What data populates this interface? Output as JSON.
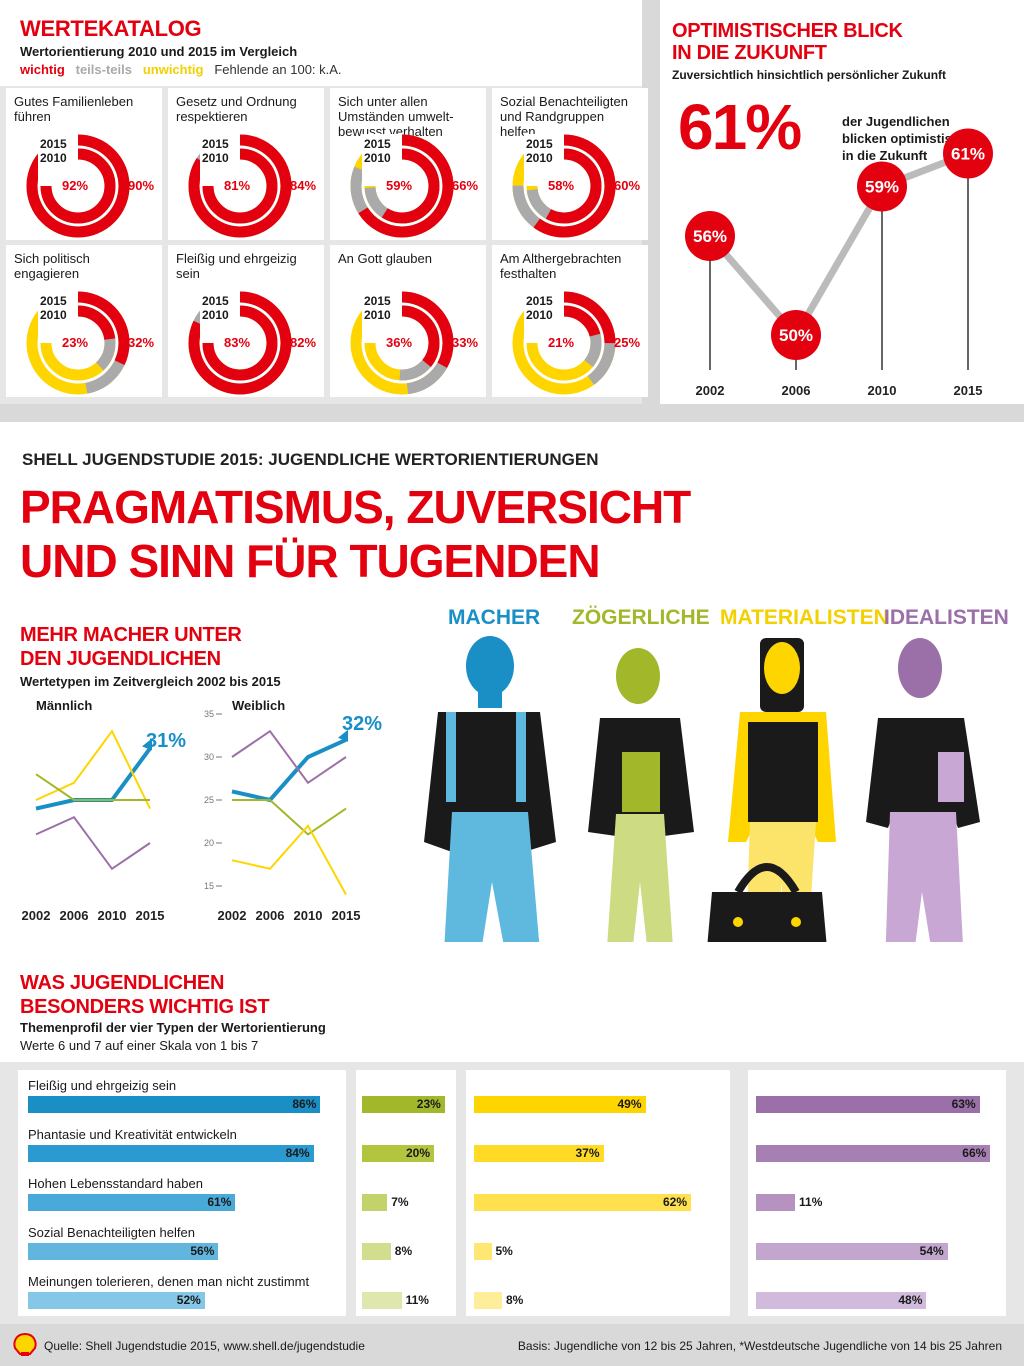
{
  "werte": {
    "title": "WERTEKATALOG",
    "subtitle": "Wertorientierung 2010 und 2015 im Vergleich",
    "legend": {
      "wichtig": "wichtig",
      "teils": "teils-teils",
      "unwichtig": "unwichtig",
      "fehlende": "Fehlende an 100: k.A."
    },
    "year_2015": "2015",
    "year_2010": "2010",
    "items": [
      {
        "label": "Gutes Familienleben führen",
        "inner": "92%",
        "outer": "90%"
      },
      {
        "label": "Gesetz und Ordnung respektieren",
        "inner": "81%",
        "outer": "84%"
      },
      {
        "label": "Sich unter allen Umständen umwelt-bewusst verhalten",
        "inner": "59%",
        "outer": "66%"
      },
      {
        "label": "Sozial Benachteiligten und Randgruppen helfen",
        "inner": "58%",
        "outer": "60%"
      },
      {
        "label": "Sich politisch engagieren",
        "inner": "23%",
        "outer": "32%"
      },
      {
        "label": "Fleißig und ehrgeizig sein",
        "inner": "83%",
        "outer": "82%"
      },
      {
        "label": "An Gott glauben",
        "inner": "36%",
        "outer": "33%"
      },
      {
        "label": "Am Althergebrachten festhalten",
        "inner": "21%",
        "outer": "25%"
      }
    ]
  },
  "optimism": {
    "title_line1": "OPTIMISTISCHER BLICK",
    "title_line2": "IN DIE ZUKUNFT",
    "subtitle": "Zuversichtlich hinsichtlich persönlicher Zukunft",
    "big": "61%",
    "desc_line1": "der Jugendlichen",
    "desc_line2": "blicken optimistisch",
    "desc_line3": "in die Zukunft",
    "points": [
      {
        "year": "2002",
        "value": 56,
        "label": "56%"
      },
      {
        "year": "2006",
        "value": 50,
        "label": "50%"
      },
      {
        "year": "2010",
        "value": 59,
        "label": "59%"
      },
      {
        "year": "2015",
        "value": 61,
        "label": "61%"
      }
    ]
  },
  "main": {
    "kicker": "SHELL JUGENDSTUDIE 2015: JUGENDLICHE WERTORIENTIERUNGEN",
    "headline1": "PRAGMATISMUS, ZUVERSICHT",
    "headline2": "UND SINN FÜR TUGENDEN"
  },
  "types": {
    "macher": "MACHER",
    "zoeger": "ZÖGERLICHE",
    "mat": "MATERIALISTEN",
    "ideal": "IDEALISTEN"
  },
  "trend": {
    "title_line1": "MEHR MACHER UNTER",
    "title_line2": "DEN JUGENDLICHEN",
    "subtitle": "Wertetypen im Zeitvergleich 2002 bis 2015",
    "male": "Männlich",
    "female": "Weiblich",
    "male_callout": "31%",
    "female_callout": "32%",
    "years": [
      "2002",
      "2006",
      "2010",
      "2015"
    ],
    "ticks": [
      "35",
      "30",
      "25",
      "20",
      "15"
    ]
  },
  "chart_data": {
    "type": "line",
    "x": [
      "2002",
      "2006",
      "2010",
      "2015"
    ],
    "ylim": [
      15,
      35
    ],
    "panels": [
      {
        "name": "Männlich",
        "series": [
          {
            "color": "#1a8fc6",
            "values": [
              24,
              25,
              25,
              31
            ]
          },
          {
            "color": "#ffd500",
            "values": [
              25,
              27,
              33,
              24
            ]
          },
          {
            "color": "#a3b72a",
            "values": [
              28,
              25,
              25,
              25
            ]
          },
          {
            "color": "#9b6fa8",
            "values": [
              21,
              23,
              17,
              20
            ]
          }
        ]
      },
      {
        "name": "Weiblich",
        "series": [
          {
            "color": "#1a8fc6",
            "values": [
              26,
              25,
              30,
              32
            ]
          },
          {
            "color": "#9b6fa8",
            "values": [
              30,
              33,
              27,
              30
            ]
          },
          {
            "color": "#a3b72a",
            "values": [
              25,
              25,
              21,
              24
            ]
          },
          {
            "color": "#ffd500",
            "values": [
              18,
              17,
              22,
              14
            ]
          }
        ]
      }
    ]
  },
  "profile": {
    "title_line1": "WAS JUGENDLICHEN",
    "title_line2": "BESONDERS WICHTIG IST",
    "subtitle": "Themenprofil der vier Typen der Wertorientierung",
    "note": "Werte 6 und 7 auf einer Skala von 1 bis 7",
    "rows": [
      {
        "label": "Fleißig und ehrgeizig sein",
        "m": 86,
        "z": 23,
        "ma": 49,
        "i": 63
      },
      {
        "label": "Phantasie und Kreativität entwickeln",
        "m": 84,
        "z": 20,
        "ma": 37,
        "i": 66
      },
      {
        "label": "Hohen Lebensstandard haben",
        "m": 61,
        "z": 7,
        "ma": 62,
        "i": 11
      },
      {
        "label": "Sozial Benachteiligten helfen",
        "m": 56,
        "z": 8,
        "ma": 5,
        "i": 54
      },
      {
        "label": "Meinungen tolerieren, denen man nicht zustimmt",
        "m": 52,
        "z": 11,
        "ma": 8,
        "i": 48
      }
    ]
  },
  "footer": {
    "source": "Quelle: Shell Jugendstudie 2015, www.shell.de/jugendstudie",
    "basis": "Basis: Jugendliche von 12 bis 25 Jahren, *Westdeutsche Jugendliche von 14 bis 25 Jahren"
  }
}
